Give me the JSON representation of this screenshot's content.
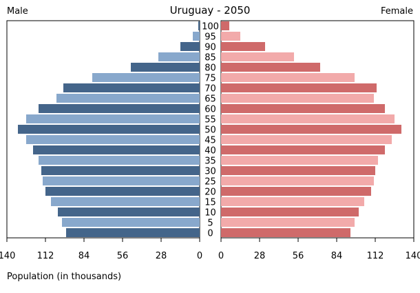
{
  "chart_data": {
    "type": "bar",
    "title": "Uruguay - 2050",
    "left_label": "Male",
    "right_label": "Female",
    "xlabel": "Population (in thousands)",
    "xlim": [
      0,
      140
    ],
    "x_ticks": [
      "140",
      "112",
      "84",
      "56",
      "28",
      "0",
      "0",
      "28",
      "56",
      "84",
      "112",
      "140"
    ],
    "categories": [
      "0",
      "5",
      "10",
      "15",
      "20",
      "25",
      "30",
      "35",
      "40",
      "45",
      "50",
      "55",
      "60",
      "65",
      "70",
      "75",
      "80",
      "85",
      "90",
      "95",
      "100"
    ],
    "series": [
      {
        "name": "Male",
        "values": [
          97,
          100,
          103,
          108,
          112,
          114,
          115,
          117,
          121,
          126,
          132,
          126,
          117,
          104,
          99,
          78,
          50,
          30,
          14,
          5,
          1
        ]
      },
      {
        "name": "Female",
        "values": [
          94,
          97,
          100,
          104,
          109,
          111,
          112,
          114,
          119,
          124,
          131,
          126,
          119,
          111,
          113,
          97,
          72,
          53,
          32,
          14,
          6
        ]
      }
    ],
    "colors": {
      "male_dark": "#44658a",
      "male_light": "#88a8cc",
      "female_dark": "#cf6a6a",
      "female_light": "#f2aaaa",
      "frame": "#000000"
    }
  }
}
